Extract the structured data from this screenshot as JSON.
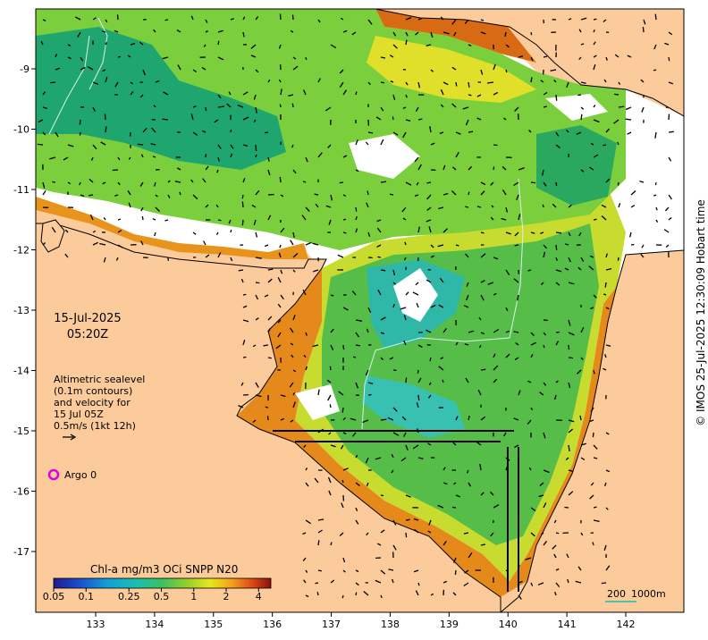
{
  "map": {
    "date": "15-Jul-2025",
    "time": "05:20Z",
    "legend": {
      "line1": "Altimetric sealevel",
      "line2": "(0.1m contours)",
      "line3": "and velocity for",
      "line4": "15 Jul 05Z",
      "line5": "0.5m/s (1kt 12h)"
    },
    "argo_label": "Argo 0",
    "argo_marker_color": "#e000e0",
    "colorbar": {
      "title": "Chl-a mg/m3 OCi SNPP N20",
      "ticks": [
        "0.05",
        "0.1",
        "0.25",
        "0.5",
        "1",
        "2",
        "4"
      ]
    },
    "scale_bar": {
      "text_a": "200",
      "text_b": "1000m"
    },
    "copyright": "© IMOS 25-Jul-2025 12:30:09 Hobart time",
    "x_ticks": [
      "133",
      "134",
      "135",
      "136",
      "137",
      "138",
      "139",
      "140",
      "141",
      "142"
    ],
    "y_ticks": [
      "-9",
      "-10",
      "-11",
      "-12",
      "-13",
      "-14",
      "-15",
      "-16",
      "-17"
    ],
    "land_color": "#fccb9b",
    "arrow_color": "#000000",
    "contour_color": "#d8f0f0"
  }
}
